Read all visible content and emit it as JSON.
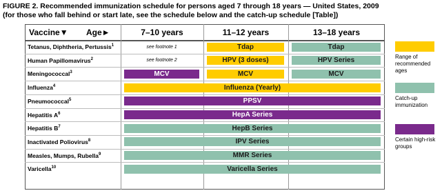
{
  "title": [
    "FIGURE 2. Recommended immunization schedule for persons aged 7 through 18 years — United States, 2009",
    "(for those who fall behind or start late, see the schedule below and the catch-up schedule [Table])"
  ],
  "header": {
    "vaccine": "Vaccine▼",
    "age": "Age►",
    "columns": [
      "7–10 years",
      "11–12 years",
      "13–18 years"
    ]
  },
  "rows": [
    {
      "vaccine": "Tetanus, Diphtheria, Pertussis",
      "footnote": "1",
      "cells": [
        {
          "text": "see footnote 1",
          "from": 0,
          "to": 0
        },
        {
          "text": "Tdap",
          "from": 1,
          "to": 1,
          "color": "#ffcc00"
        },
        {
          "text": "Tdap",
          "from": 2,
          "to": 2,
          "color": "#8fc1ad"
        }
      ]
    },
    {
      "vaccine": "Human Papillomavirus",
      "footnote": "2",
      "cells": [
        {
          "text": "see footnote 2",
          "from": 0,
          "to": 0
        },
        {
          "text": "HPV (3 doses)",
          "from": 1,
          "to": 1,
          "color": "#ffcc00"
        },
        {
          "text": "HPV Series",
          "from": 2,
          "to": 2,
          "color": "#8fc1ad"
        }
      ]
    },
    {
      "vaccine": "Meningococcal",
      "footnote": "3",
      "cells": [
        {
          "text": "MCV",
          "from": 0,
          "to": 0,
          "color": "#7a2a8c"
        },
        {
          "text": "MCV",
          "from": 1,
          "to": 1,
          "color": "#ffcc00"
        },
        {
          "text": "MCV",
          "from": 2,
          "to": 2,
          "color": "#8fc1ad"
        }
      ]
    },
    {
      "vaccine": "Influenza",
      "footnote": "4",
      "cells": [
        {
          "text": "Influenza (Yearly)",
          "from": 0,
          "to": 2,
          "color": "#ffcc00"
        }
      ]
    },
    {
      "vaccine": "Pneumococcal",
      "footnote": "5",
      "cells": [
        {
          "text": "PPSV",
          "from": 0,
          "to": 2,
          "color": "#7a2a8c"
        }
      ]
    },
    {
      "vaccine": "Hepatitis A",
      "footnote": "6",
      "cells": [
        {
          "text": "HepA Series",
          "from": 0,
          "to": 2,
          "color": "#7a2a8c"
        }
      ]
    },
    {
      "vaccine": "Hepatitis B",
      "footnote": "7",
      "cells": [
        {
          "text": "HepB Series",
          "from": 0,
          "to": 2,
          "color": "#8fc1ad"
        }
      ]
    },
    {
      "vaccine": "Inactivated Poliovirus",
      "footnote": "8",
      "cells": [
        {
          "text": "IPV Series",
          "from": 0,
          "to": 2,
          "color": "#8fc1ad"
        }
      ]
    },
    {
      "vaccine": "Measles, Mumps, Rubella",
      "footnote": "9",
      "cells": [
        {
          "text": "MMR Series",
          "from": 0,
          "to": 2,
          "color": "#8fc1ad"
        }
      ]
    },
    {
      "vaccine": "Varicella",
      "footnote": "10",
      "cells": [
        {
          "text": "Varicella Series",
          "from": 0,
          "to": 2,
          "color": "#8fc1ad"
        }
      ]
    }
  ],
  "legend": [
    {
      "color": "#ffcc00",
      "label": "Range of recommended ages"
    },
    {
      "color": "#8fc1ad",
      "label": "Catch-up immunization"
    },
    {
      "color": "#7a2a8c",
      "label": "Certain high-risk groups"
    }
  ]
}
